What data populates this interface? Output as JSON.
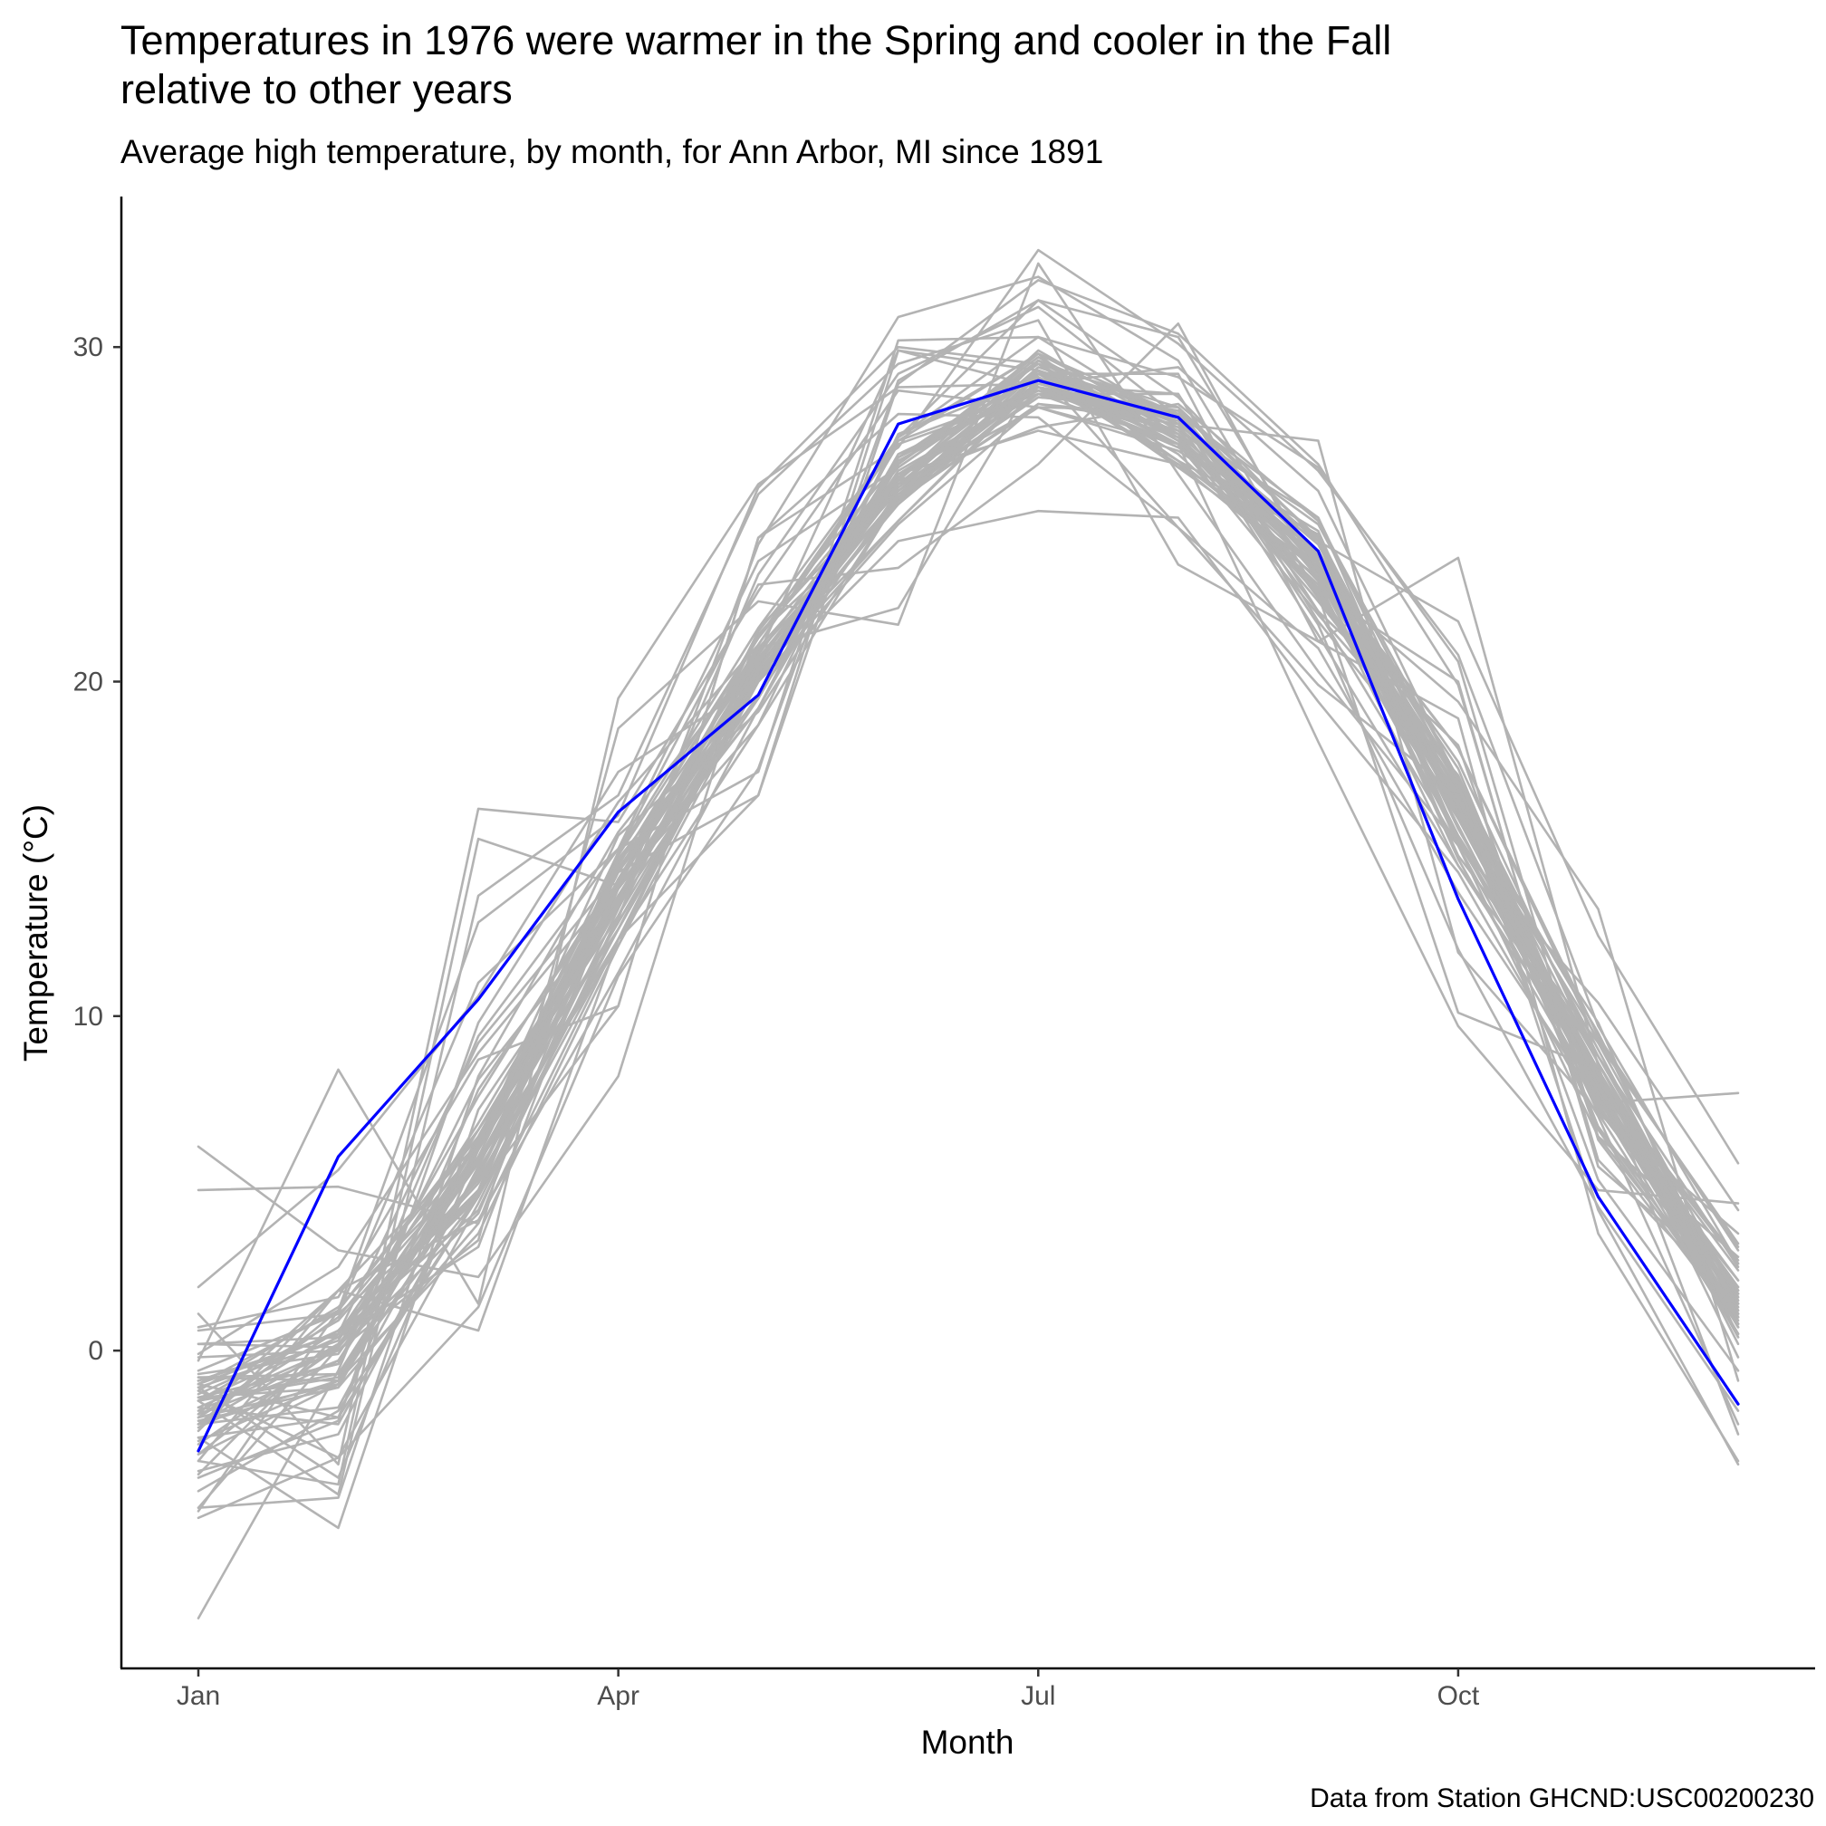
{
  "chart_data": {
    "type": "line",
    "title_lines": [
      "Temperatures in 1976 were warmer in the Spring and cooler in the Fall",
      "relative to other years"
    ],
    "subtitle": "Average high temperature, by month, for Ann Arbor, MI since 1891",
    "xlabel": "Month",
    "ylabel": "Temperature (°C)",
    "caption": "Data from Station GHCND:USC00200230",
    "x": [
      1,
      2,
      3,
      4,
      5,
      6,
      7,
      8,
      9,
      10,
      11,
      12
    ],
    "xlim": [
      0.45,
      12.55
    ],
    "ylim": [
      -9.5,
      34.5
    ],
    "x_ticks": [
      {
        "value": 1,
        "label": "Jan"
      },
      {
        "value": 4,
        "label": "Apr"
      },
      {
        "value": 7,
        "label": "Jul"
      },
      {
        "value": 10,
        "label": "Oct"
      }
    ],
    "y_ticks": [
      {
        "value": 0,
        "label": "0"
      },
      {
        "value": 10,
        "label": "10"
      },
      {
        "value": 20,
        "label": "20"
      },
      {
        "value": 30,
        "label": "30"
      }
    ],
    "grid": false,
    "legend": "none",
    "colors": {
      "other_years": "#b3b3b3",
      "highlight": "#0000ff"
    },
    "highlight_series": {
      "year": "1976",
      "values": [
        -3.0,
        5.8,
        10.5,
        16.1,
        19.6,
        27.7,
        29.0,
        27.9,
        23.9,
        13.5,
        4.6,
        -1.6
      ]
    },
    "other_years_series": [
      [
        -2.0,
        -1.0,
        5.3,
        13.5,
        20.4,
        26.2,
        28.8,
        28.0,
        23.5,
        16.7,
        8.6,
        1.1
      ],
      [
        -4.2,
        -1.8,
        4.6,
        12.3,
        18.7,
        27.4,
        29.1,
        26.6,
        24.4,
        16.3,
        8.1,
        2.7
      ],
      [
        -0.7,
        -0.1,
        6.0,
        14.1,
        20.6,
        26.1,
        28.6,
        28.6,
        22.1,
        18.1,
        6.4,
        2.8
      ],
      [
        -2.8,
        0.1,
        7.6,
        14.3,
        21.4,
        26.0,
        29.9,
        27.5,
        24.9,
        15.3,
        7.7,
        1.1
      ],
      [
        -1.1,
        0.3,
        6.8,
        13.9,
        18.7,
        25.5,
        29.6,
        28.0,
        23.5,
        15.2,
        8.4,
        0.8
      ],
      [
        -3.1,
        -1.0,
        6.4,
        14.0,
        21.1,
        27.2,
        28.7,
        27.9,
        23.4,
        17.1,
        6.7,
        1.0
      ],
      [
        -1.4,
        -1.1,
        3.8,
        12.3,
        20.6,
        26.0,
        27.6,
        28.3,
        24.8,
        17.1,
        8.8,
        2.5
      ],
      [
        -1.7,
        -2.2,
        5.4,
        12.3,
        20.2,
        25.4,
        29.2,
        26.8,
        22.9,
        15.3,
        8.4,
        1.4
      ],
      [
        -2.0,
        0.6,
        5.1,
        12.6,
        20.0,
        26.0,
        29.6,
        27.2,
        22.8,
        16.0,
        8.4,
        0.2
      ],
      [
        -0.8,
        -0.9,
        6.3,
        12.6,
        20.0,
        26.1,
        28.8,
        27.1,
        23.7,
        16.2,
        7.1,
        0.5
      ],
      [
        0.6,
        1.1,
        4.7,
        14.7,
        20.0,
        26.7,
        29.5,
        28.2,
        23.7,
        17.4,
        7.3,
        2.1
      ],
      [
        -1.0,
        1.2,
        6.6,
        13.0,
        21.4,
        25.3,
        29.2,
        27.3,
        23.0,
        14.5,
        8.1,
        1.7
      ],
      [
        -0.2,
        0.0,
        4.1,
        13.8,
        20.2,
        24.8,
        29.0,
        27.4,
        22.4,
        17.1,
        7.2,
        1.8
      ],
      [
        0.2,
        0.4,
        3.1,
        14.1,
        20.9,
        25.5,
        29.3,
        27.6,
        23.9,
        14.7,
        7.4,
        0.5
      ],
      [
        -1.4,
        -0.4,
        8.1,
        13.4,
        20.1,
        27.1,
        28.6,
        27.9,
        23.8,
        16.9,
        8.0,
        2.4
      ],
      [
        -2.2,
        1.2,
        6.4,
        13.8,
        19.2,
        27.2,
        29.8,
        26.4,
        24.4,
        15.3,
        8.0,
        0.8
      ],
      [
        -1.9,
        1.8,
        6.2,
        15.4,
        19.1,
        25.5,
        28.6,
        27.1,
        23.3,
        18.0,
        9.4,
        3.0
      ],
      [
        -0.1,
        2.5,
        8.9,
        14.0,
        20.7,
        25.9,
        28.2,
        28.1,
        22.5,
        16.5,
        7.7,
        1.9
      ],
      [
        -2.7,
        -0.9,
        6.0,
        12.8,
        20.1,
        25.5,
        29.1,
        26.5,
        23.1,
        16.2,
        9.3,
        3.1
      ],
      [
        -1.1,
        -3.8,
        6.0,
        13.6,
        20.3,
        25.4,
        28.3,
        27.9,
        23.9,
        17.1,
        7.6,
        1.3
      ],
      [
        -2.0,
        1.0,
        6.1,
        14.3,
        20.5,
        26.5,
        29.8,
        27.7,
        24.7,
        16.9,
        7.6,
        1.0
      ],
      [
        -1.5,
        -0.7,
        4.6,
        13.2,
        21.5,
        26.6,
        28.9,
        27.8,
        23.6,
        17.6,
        8.6,
        0.9
      ],
      [
        -0.8,
        -0.7,
        5.8,
        14.3,
        20.0,
        24.7,
        28.3,
        27.7,
        24.2,
        14.8,
        9.2,
        1.6
      ],
      [
        0.2,
        0.1,
        6.2,
        14.4,
        20.5,
        24.8,
        28.9,
        28.6,
        21.8,
        16.6,
        9.5,
        1.0
      ],
      [
        -1.0,
        0.5,
        5.0,
        12.6,
        20.6,
        25.9,
        29.3,
        27.7,
        22.1,
        15.1,
        7.5,
        1.1
      ],
      [
        -1.5,
        0.4,
        4.6,
        14.8,
        21.3,
        26.4,
        29.3,
        26.4,
        23.4,
        16.4,
        8.0,
        0.4
      ],
      [
        -0.9,
        0.5,
        6.6,
        13.3,
        20.8,
        26.5,
        29.7,
        27.4,
        22.7,
        16.8,
        7.8,
        0.5
      ],
      [
        -2.1,
        -1.1,
        6.3,
        14.6,
        19.5,
        26.8,
        28.8,
        28.1,
        23.2,
        16.4,
        6.6,
        1.7
      ],
      [
        -2.6,
        -2.0,
        4.6,
        12.6,
        20.4,
        25.8,
        29.4,
        28.0,
        24.9,
        16.1,
        8.0,
        2.6
      ],
      [
        -1.2,
        1.3,
        5.6,
        12.8,
        20.0,
        26.2,
        27.5,
        26.5,
        23.8,
        15.7,
        7.6,
        0.7
      ],
      [
        -0.9,
        0.5,
        4.2,
        13.0,
        20.0,
        26.3,
        28.7,
        27.3,
        23.7,
        16.5,
        7.8,
        1.7
      ],
      [
        -1.7,
        0.1,
        5.6,
        13.9,
        19.2,
        26.5,
        29.6,
        27.3,
        22.6,
        15.9,
        8.1,
        1.2
      ],
      [
        -2.2,
        -0.9,
        3.5,
        12.1,
        21.0,
        25.7,
        29.1,
        27.1,
        22.0,
        17.2,
        7.9,
        0.7
      ],
      [
        -2.2,
        -1.7,
        6.0,
        13.8,
        20.1,
        26.1,
        29.3,
        27.1,
        22.6,
        16.6,
        6.6,
        0.8
      ],
      [
        -2.3,
        -0.3,
        5.6,
        12.1,
        20.0,
        26.5,
        29.5,
        26.6,
        23.3,
        16.8,
        9.0,
        1.2
      ],
      [
        -1.0,
        -2.0,
        7.8,
        14.0,
        20.4,
        25.8,
        28.8,
        27.4,
        23.8,
        15.4,
        8.8,
        1.5
      ],
      [
        -1.3,
        0.6,
        4.8,
        14.6,
        20.7,
        25.5,
        28.2,
        26.9,
        24.2,
        16.6,
        8.2,
        1.8
      ],
      [
        -3.6,
        -2.5,
        5.5,
        13.6,
        19.6,
        25.7,
        28.5,
        28.2,
        24.3,
        15.6,
        8.2,
        1.4
      ],
      [
        -1.4,
        -0.4,
        6.6,
        13.6,
        20.3,
        25.3,
        28.8,
        28.0,
        23.1,
        15.3,
        7.7,
        1.4
      ],
      [
        -2.2,
        0.2,
        5.2,
        13.5,
        20.1,
        26.7,
        28.8,
        27.9,
        23.8,
        16.9,
        7.3,
        1.8
      ],
      [
        -1.5,
        0.9,
        5.7,
        13.3,
        19.5,
        26.7,
        29.2,
        27.6,
        24.1,
        16.1,
        8.3,
        0.7
      ],
      [
        -1.9,
        -0.3,
        6.2,
        13.5,
        20.4,
        25.6,
        28.8,
        27.5,
        23.3,
        16.3,
        8.1,
        1.4
      ],
      [
        -4.8,
        1.2,
        12.8,
        16.0,
        25.8,
        30.0,
        29.5,
        27.2,
        23.4,
        18.0,
        9.2,
        3.2
      ],
      [
        4.8,
        4.9,
        3.8,
        14.5,
        21.3,
        27.3,
        29.8,
        28.0,
        21.7,
        12.0,
        4.3,
        -1.8
      ],
      [
        -3.8,
        -2.1,
        9.8,
        16.4,
        21.1,
        27.3,
        30.3,
        29.1,
        26.4,
        20.6,
        6.3,
        0.8
      ],
      [
        -4.7,
        0.1,
        4.8,
        10.3,
        24.3,
        27.0,
        32.9,
        30.1,
        26.3,
        20.8,
        9.7,
        2.6
      ],
      [
        1.9,
        5.4,
        10.6,
        17.3,
        20.0,
        24.2,
        25.1,
        24.9,
        19.4,
        14.3,
        7.0,
        -2.2
      ],
      [
        -4.7,
        -4.4,
        8.2,
        15.5,
        20.8,
        29.9,
        29.3,
        24.6,
        19.9,
        16.6,
        5.1,
        -0.6
      ],
      [
        -2.6,
        -5.3,
        7.2,
        13.4,
        23.2,
        29.2,
        31.2,
        27.9,
        22.7,
        20.0,
        5.5,
        1.9
      ],
      [
        -3.1,
        0.2,
        4.7,
        14.9,
        22.9,
        23.4,
        26.5,
        30.7,
        23.0,
        19.4,
        13.2,
        -0.9
      ],
      [
        6.1,
        3.0,
        2.2,
        8.2,
        21.6,
        27.3,
        31.4,
        30.3,
        23.3,
        16.1,
        9.8,
        0.4
      ],
      [
        0.7,
        1.6,
        8.7,
        10.3,
        24.3,
        28.0,
        27.9,
        24.6,
        21.0,
        13.7,
        7.4,
        7.7
      ],
      [
        -1.5,
        -4.3,
        13.6,
        16.6,
        25.6,
        29.5,
        30.8,
        23.5,
        21.2,
        23.7,
        8.5,
        -2.5
      ],
      [
        -0.3,
        8.4,
        1.4,
        19.5,
        25.9,
        28.8,
        28.9,
        29.4,
        25.7,
        17.0,
        4.2,
        -3.4
      ],
      [
        -5.0,
        -3.2,
        1.3,
        11.2,
        17.4,
        29.0,
        31.4,
        28.5,
        24.2,
        21.8,
        12.4,
        5.6
      ],
      [
        -2.4,
        1.8,
        0.6,
        12.3,
        16.6,
        28.9,
        32.0,
        30.4,
        26.5,
        19.9,
        5.7,
        1.3
      ],
      [
        -3.3,
        -4.0,
        15.3,
        13.9,
        21.0,
        22.2,
        29.2,
        29.2,
        21.2,
        18.9,
        3.5,
        -3.3
      ],
      [
        -0.6,
        1.1,
        11.0,
        15.0,
        17.3,
        30.2,
        30.3,
        27.7,
        27.2,
        11.9,
        7.1,
        3.5
      ],
      [
        -1.8,
        0.0,
        3.3,
        18.6,
        22.4,
        21.7,
        32.5,
        26.2,
        20.3,
        15.1,
        6.4,
        1.1
      ],
      [
        1.1,
        -3.4,
        16.2,
        15.8,
        22.7,
        28.7,
        28.2,
        27.1,
        18.2,
        9.7,
        4.8,
        4.4
      ],
      [
        -3.7,
        0.5,
        9.2,
        14.3,
        16.6,
        29.9,
        28.8,
        27.0,
        24.5,
        15.1,
        10.4,
        4.2
      ],
      [
        -1.2,
        -3.2,
        4.4,
        12.9,
        24.1,
        30.9,
        32.1,
        29.6,
        22.6,
        10.1,
        8.4,
        -0.2
      ],
      [
        -8.0,
        -0.6,
        9.4,
        15.0,
        23.6,
        26.4,
        29.3,
        28.0,
        21.4,
        14.5,
        8.8,
        1.5
      ],
      [
        -3.3,
        1.8,
        3.9,
        11.3,
        19.2,
        26.6,
        28.8,
        27.8,
        23.6,
        16.5,
        7.7,
        2.1
      ],
      [
        -1.5,
        -0.8,
        6.1,
        14.9,
        21.6,
        25.7,
        28.5,
        28.1,
        24.3,
        15.9,
        8.6,
        1.6
      ]
    ]
  }
}
